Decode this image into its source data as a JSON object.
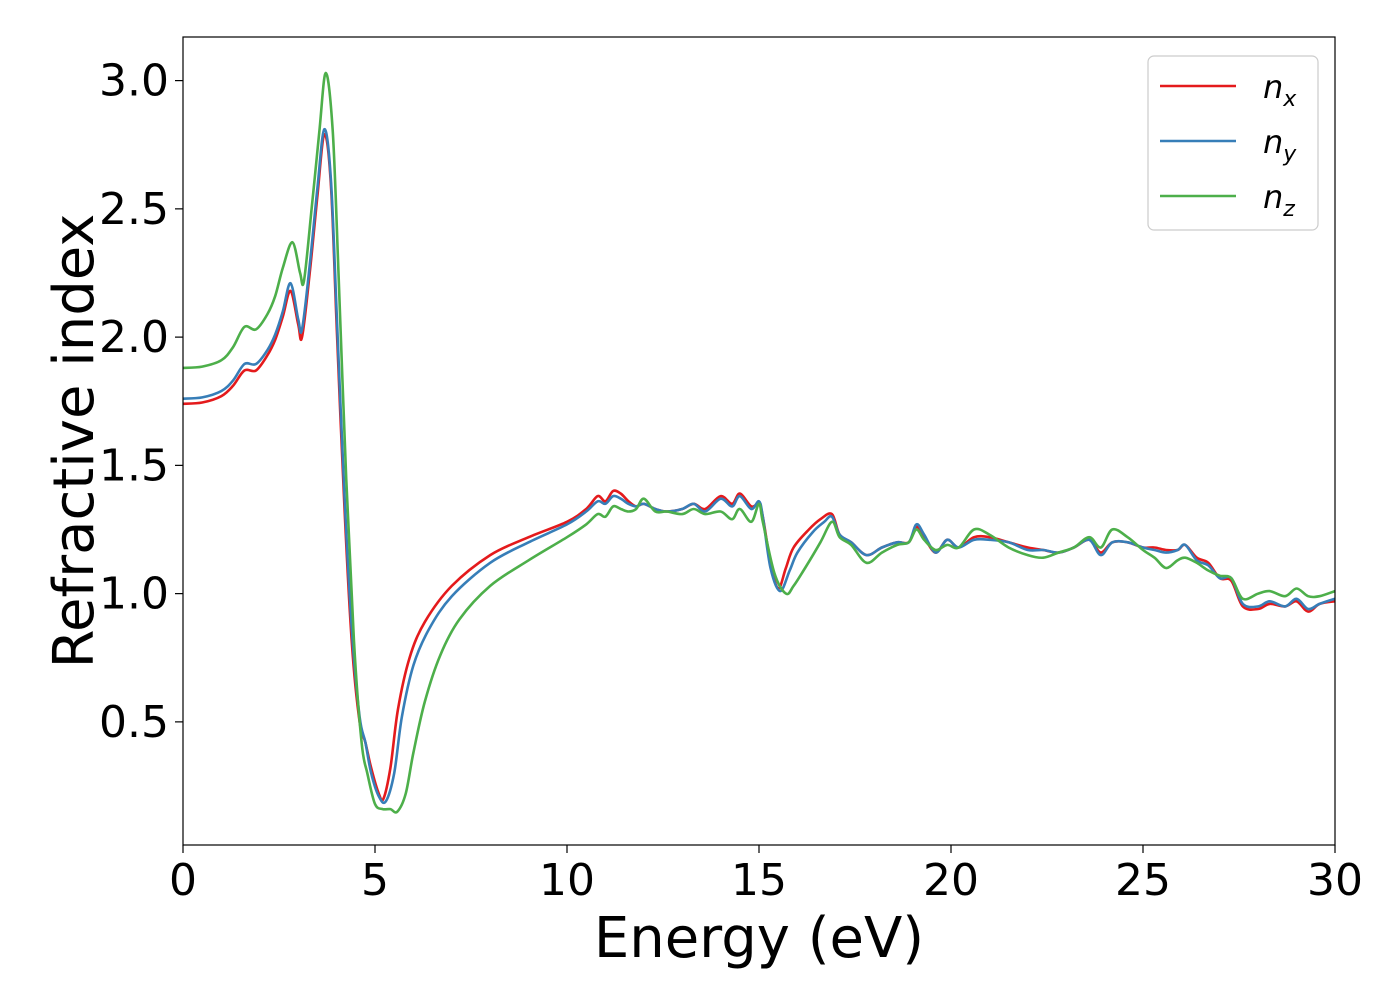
{
  "chart_data": {
    "type": "line",
    "title": "",
    "xlabel": "Energy (eV)",
    "ylabel": "Refractive index",
    "xlim": [
      0,
      30
    ],
    "ylim": [
      0.02,
      3.17
    ],
    "xticks": [
      0,
      5,
      10,
      15,
      20,
      25,
      30
    ],
    "yticks": [
      0.5,
      1.0,
      1.5,
      2.0,
      2.5,
      3.0
    ],
    "xtick_labels": [
      "0",
      "5",
      "10",
      "15",
      "20",
      "25",
      "30"
    ],
    "ytick_labels": [
      "0.5",
      "1.0",
      "1.5",
      "2.0",
      "2.5",
      "3.0"
    ],
    "grid": false,
    "legend_position": "top-right",
    "series": [
      {
        "name": "n_x",
        "label_main": "n",
        "label_sub": "x",
        "color": "#e41a1c",
        "points": [
          [
            0,
            1.74
          ],
          [
            0.5,
            1.745
          ],
          [
            1.0,
            1.77
          ],
          [
            1.3,
            1.81
          ],
          [
            1.6,
            1.87
          ],
          [
            1.9,
            1.87
          ],
          [
            2.2,
            1.93
          ],
          [
            2.4,
            1.99
          ],
          [
            2.6,
            2.08
          ],
          [
            2.8,
            2.18
          ],
          [
            3.0,
            2.05
          ],
          [
            3.1,
            2.0
          ],
          [
            3.3,
            2.25
          ],
          [
            3.5,
            2.55
          ],
          [
            3.68,
            2.79
          ],
          [
            3.85,
            2.6
          ],
          [
            4.0,
            2.05
          ],
          [
            4.2,
            1.35
          ],
          [
            4.4,
            0.8
          ],
          [
            4.6,
            0.5
          ],
          [
            4.75,
            0.42
          ],
          [
            4.9,
            0.32
          ],
          [
            5.1,
            0.22
          ],
          [
            5.22,
            0.2
          ],
          [
            5.4,
            0.32
          ],
          [
            5.6,
            0.55
          ],
          [
            5.9,
            0.75
          ],
          [
            6.3,
            0.89
          ],
          [
            7.0,
            1.03
          ],
          [
            8.0,
            1.15
          ],
          [
            9.0,
            1.22
          ],
          [
            10.0,
            1.28
          ],
          [
            10.5,
            1.33
          ],
          [
            10.8,
            1.38
          ],
          [
            11.0,
            1.36
          ],
          [
            11.2,
            1.4
          ],
          [
            11.4,
            1.39
          ],
          [
            11.6,
            1.36
          ],
          [
            11.8,
            1.34
          ],
          [
            12.0,
            1.35
          ],
          [
            12.3,
            1.33
          ],
          [
            12.6,
            1.32
          ],
          [
            13.0,
            1.33
          ],
          [
            13.3,
            1.35
          ],
          [
            13.6,
            1.33
          ],
          [
            14.0,
            1.38
          ],
          [
            14.3,
            1.35
          ],
          [
            14.5,
            1.39
          ],
          [
            14.8,
            1.34
          ],
          [
            15.0,
            1.35
          ],
          [
            15.1,
            1.3
          ],
          [
            15.3,
            1.12
          ],
          [
            15.5,
            1.02
          ],
          [
            15.7,
            1.1
          ],
          [
            15.9,
            1.18
          ],
          [
            16.3,
            1.25
          ],
          [
            16.6,
            1.29
          ],
          [
            16.9,
            1.31
          ],
          [
            17.1,
            1.23
          ],
          [
            17.4,
            1.2
          ],
          [
            17.8,
            1.15
          ],
          [
            18.2,
            1.18
          ],
          [
            18.6,
            1.2
          ],
          [
            18.9,
            1.2
          ],
          [
            19.1,
            1.26
          ],
          [
            19.3,
            1.22
          ],
          [
            19.6,
            1.16
          ],
          [
            19.9,
            1.21
          ],
          [
            20.2,
            1.18
          ],
          [
            20.6,
            1.22
          ],
          [
            21.0,
            1.22
          ],
          [
            21.5,
            1.2
          ],
          [
            22.0,
            1.18
          ],
          [
            22.4,
            1.17
          ],
          [
            22.8,
            1.16
          ],
          [
            23.2,
            1.18
          ],
          [
            23.6,
            1.21
          ],
          [
            23.9,
            1.16
          ],
          [
            24.2,
            1.2
          ],
          [
            24.6,
            1.2
          ],
          [
            25.0,
            1.18
          ],
          [
            25.3,
            1.18
          ],
          [
            25.6,
            1.17
          ],
          [
            25.9,
            1.17
          ],
          [
            26.1,
            1.19
          ],
          [
            26.4,
            1.14
          ],
          [
            26.7,
            1.12
          ],
          [
            27.0,
            1.06
          ],
          [
            27.3,
            1.05
          ],
          [
            27.6,
            0.95
          ],
          [
            28.0,
            0.94
          ],
          [
            28.3,
            0.96
          ],
          [
            28.7,
            0.95
          ],
          [
            29.0,
            0.97
          ],
          [
            29.3,
            0.93
          ],
          [
            29.6,
            0.96
          ],
          [
            30.0,
            0.97
          ]
        ]
      },
      {
        "name": "n_y",
        "label_main": "n",
        "label_sub": "y",
        "color": "#377eb8",
        "points": [
          [
            0,
            1.76
          ],
          [
            0.5,
            1.765
          ],
          [
            1.0,
            1.79
          ],
          [
            1.3,
            1.83
          ],
          [
            1.6,
            1.895
          ],
          [
            1.9,
            1.895
          ],
          [
            2.2,
            1.95
          ],
          [
            2.4,
            2.01
          ],
          [
            2.6,
            2.1
          ],
          [
            2.8,
            2.21
          ],
          [
            3.0,
            2.07
          ],
          [
            3.1,
            2.03
          ],
          [
            3.3,
            2.28
          ],
          [
            3.5,
            2.58
          ],
          [
            3.68,
            2.81
          ],
          [
            3.85,
            2.62
          ],
          [
            4.0,
            2.1
          ],
          [
            4.2,
            1.4
          ],
          [
            4.4,
            0.85
          ],
          [
            4.6,
            0.52
          ],
          [
            4.75,
            0.42
          ],
          [
            4.9,
            0.3
          ],
          [
            5.1,
            0.21
          ],
          [
            5.28,
            0.19
          ],
          [
            5.5,
            0.3
          ],
          [
            5.7,
            0.52
          ],
          [
            6.0,
            0.72
          ],
          [
            6.4,
            0.86
          ],
          [
            7.0,
            0.99
          ],
          [
            8.0,
            1.12
          ],
          [
            9.0,
            1.2
          ],
          [
            10.0,
            1.27
          ],
          [
            10.5,
            1.32
          ],
          [
            10.8,
            1.36
          ],
          [
            11.0,
            1.35
          ],
          [
            11.2,
            1.38
          ],
          [
            11.4,
            1.37
          ],
          [
            11.6,
            1.35
          ],
          [
            11.8,
            1.34
          ],
          [
            12.0,
            1.35
          ],
          [
            12.3,
            1.33
          ],
          [
            12.6,
            1.32
          ],
          [
            13.0,
            1.33
          ],
          [
            13.3,
            1.35
          ],
          [
            13.6,
            1.32
          ],
          [
            14.0,
            1.37
          ],
          [
            14.3,
            1.34
          ],
          [
            14.5,
            1.38
          ],
          [
            14.8,
            1.33
          ],
          [
            15.0,
            1.36
          ],
          [
            15.1,
            1.3
          ],
          [
            15.3,
            1.1
          ],
          [
            15.55,
            1.01
          ],
          [
            15.8,
            1.09
          ],
          [
            16.0,
            1.16
          ],
          [
            16.4,
            1.24
          ],
          [
            16.7,
            1.28
          ],
          [
            16.9,
            1.3
          ],
          [
            17.1,
            1.23
          ],
          [
            17.4,
            1.2
          ],
          [
            17.8,
            1.15
          ],
          [
            18.2,
            1.18
          ],
          [
            18.6,
            1.2
          ],
          [
            18.9,
            1.2
          ],
          [
            19.1,
            1.27
          ],
          [
            19.3,
            1.23
          ],
          [
            19.6,
            1.16
          ],
          [
            19.9,
            1.21
          ],
          [
            20.2,
            1.18
          ],
          [
            20.6,
            1.21
          ],
          [
            21.0,
            1.21
          ],
          [
            21.5,
            1.2
          ],
          [
            22.0,
            1.17
          ],
          [
            22.4,
            1.17
          ],
          [
            22.8,
            1.16
          ],
          [
            23.2,
            1.18
          ],
          [
            23.6,
            1.21
          ],
          [
            23.9,
            1.15
          ],
          [
            24.2,
            1.2
          ],
          [
            24.6,
            1.2
          ],
          [
            25.0,
            1.18
          ],
          [
            25.3,
            1.17
          ],
          [
            25.6,
            1.16
          ],
          [
            25.9,
            1.17
          ],
          [
            26.1,
            1.19
          ],
          [
            26.4,
            1.13
          ],
          [
            26.7,
            1.11
          ],
          [
            27.0,
            1.06
          ],
          [
            27.3,
            1.06
          ],
          [
            27.6,
            0.96
          ],
          [
            28.0,
            0.95
          ],
          [
            28.3,
            0.97
          ],
          [
            28.7,
            0.95
          ],
          [
            29.0,
            0.98
          ],
          [
            29.3,
            0.94
          ],
          [
            29.6,
            0.96
          ],
          [
            30.0,
            0.98
          ]
        ]
      },
      {
        "name": "n_z",
        "label_main": "n",
        "label_sub": "z",
        "color": "#4daf4a",
        "points": [
          [
            0,
            1.88
          ],
          [
            0.5,
            1.885
          ],
          [
            1.0,
            1.91
          ],
          [
            1.3,
            1.96
          ],
          [
            1.6,
            2.04
          ],
          [
            1.9,
            2.03
          ],
          [
            2.2,
            2.09
          ],
          [
            2.4,
            2.16
          ],
          [
            2.6,
            2.27
          ],
          [
            2.85,
            2.37
          ],
          [
            3.05,
            2.25
          ],
          [
            3.15,
            2.22
          ],
          [
            3.35,
            2.5
          ],
          [
            3.55,
            2.8
          ],
          [
            3.72,
            3.03
          ],
          [
            3.9,
            2.8
          ],
          [
            4.05,
            2.25
          ],
          [
            4.25,
            1.45
          ],
          [
            4.45,
            0.82
          ],
          [
            4.65,
            0.42
          ],
          [
            4.8,
            0.3
          ],
          [
            5.0,
            0.18
          ],
          [
            5.2,
            0.16
          ],
          [
            5.4,
            0.16
          ],
          [
            5.58,
            0.15
          ],
          [
            5.8,
            0.22
          ],
          [
            6.0,
            0.38
          ],
          [
            6.3,
            0.58
          ],
          [
            6.7,
            0.76
          ],
          [
            7.2,
            0.9
          ],
          [
            8.0,
            1.03
          ],
          [
            9.0,
            1.13
          ],
          [
            10.0,
            1.22
          ],
          [
            10.5,
            1.27
          ],
          [
            10.8,
            1.31
          ],
          [
            11.0,
            1.3
          ],
          [
            11.2,
            1.34
          ],
          [
            11.4,
            1.33
          ],
          [
            11.6,
            1.32
          ],
          [
            11.8,
            1.33
          ],
          [
            12.0,
            1.37
          ],
          [
            12.3,
            1.32
          ],
          [
            12.6,
            1.32
          ],
          [
            13.0,
            1.31
          ],
          [
            13.3,
            1.33
          ],
          [
            13.6,
            1.31
          ],
          [
            14.0,
            1.32
          ],
          [
            14.3,
            1.29
          ],
          [
            14.5,
            1.33
          ],
          [
            14.8,
            1.28
          ],
          [
            15.0,
            1.35
          ],
          [
            15.1,
            1.28
          ],
          [
            15.4,
            1.08
          ],
          [
            15.7,
            1.0
          ],
          [
            15.9,
            1.03
          ],
          [
            16.2,
            1.1
          ],
          [
            16.6,
            1.2
          ],
          [
            16.9,
            1.28
          ],
          [
            17.1,
            1.22
          ],
          [
            17.4,
            1.19
          ],
          [
            17.8,
            1.12
          ],
          [
            18.2,
            1.16
          ],
          [
            18.6,
            1.19
          ],
          [
            18.9,
            1.2
          ],
          [
            19.1,
            1.25
          ],
          [
            19.3,
            1.21
          ],
          [
            19.6,
            1.17
          ],
          [
            19.9,
            1.19
          ],
          [
            20.2,
            1.18
          ],
          [
            20.6,
            1.25
          ],
          [
            21.0,
            1.23
          ],
          [
            21.5,
            1.18
          ],
          [
            22.0,
            1.15
          ],
          [
            22.4,
            1.14
          ],
          [
            22.8,
            1.16
          ],
          [
            23.2,
            1.18
          ],
          [
            23.6,
            1.22
          ],
          [
            23.9,
            1.18
          ],
          [
            24.2,
            1.25
          ],
          [
            24.6,
            1.22
          ],
          [
            25.0,
            1.17
          ],
          [
            25.3,
            1.14
          ],
          [
            25.6,
            1.1
          ],
          [
            25.9,
            1.13
          ],
          [
            26.1,
            1.14
          ],
          [
            26.4,
            1.12
          ],
          [
            26.7,
            1.09
          ],
          [
            27.0,
            1.07
          ],
          [
            27.3,
            1.06
          ],
          [
            27.6,
            0.98
          ],
          [
            28.0,
            1.0
          ],
          [
            28.3,
            1.01
          ],
          [
            28.7,
            0.99
          ],
          [
            29.0,
            1.02
          ],
          [
            29.3,
            0.99
          ],
          [
            29.6,
            0.99
          ],
          [
            30.0,
            1.01
          ]
        ]
      }
    ]
  }
}
